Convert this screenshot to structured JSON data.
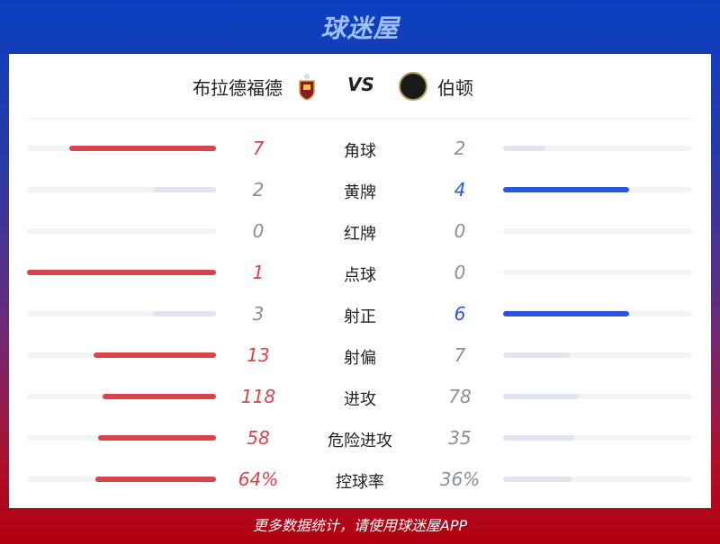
{
  "brand": "球迷屋",
  "home": {
    "name": "布拉德福德"
  },
  "vs": "VS",
  "away": {
    "name": "伯顿"
  },
  "colors": {
    "home": "#d9434b",
    "away": "#2a55e0",
    "loser_bar": "#e1e6ee",
    "track": "#f2f3f5",
    "neutral_text": "#8a9099"
  },
  "stats": [
    {
      "label": "角球",
      "home": "7",
      "away": "2",
      "h": 7,
      "a": 2
    },
    {
      "label": "黄牌",
      "home": "2",
      "away": "4",
      "h": 2,
      "a": 4
    },
    {
      "label": "红牌",
      "home": "0",
      "away": "0",
      "h": 0,
      "a": 0
    },
    {
      "label": "点球",
      "home": "1",
      "away": "0",
      "h": 1,
      "a": 0
    },
    {
      "label": "射正",
      "home": "3",
      "away": "6",
      "h": 3,
      "a": 6
    },
    {
      "label": "射偏",
      "home": "13",
      "away": "7",
      "h": 13,
      "a": 7
    },
    {
      "label": "进攻",
      "home": "118",
      "away": "78",
      "h": 118,
      "a": 78
    },
    {
      "label": "危险进攻",
      "home": "58",
      "away": "35",
      "h": 58,
      "a": 35
    },
    {
      "label": "控球率",
      "home": "64%",
      "away": "36%",
      "h": 64,
      "a": 36
    }
  ],
  "footer": "更多数据统计，请使用球迷屋APP"
}
